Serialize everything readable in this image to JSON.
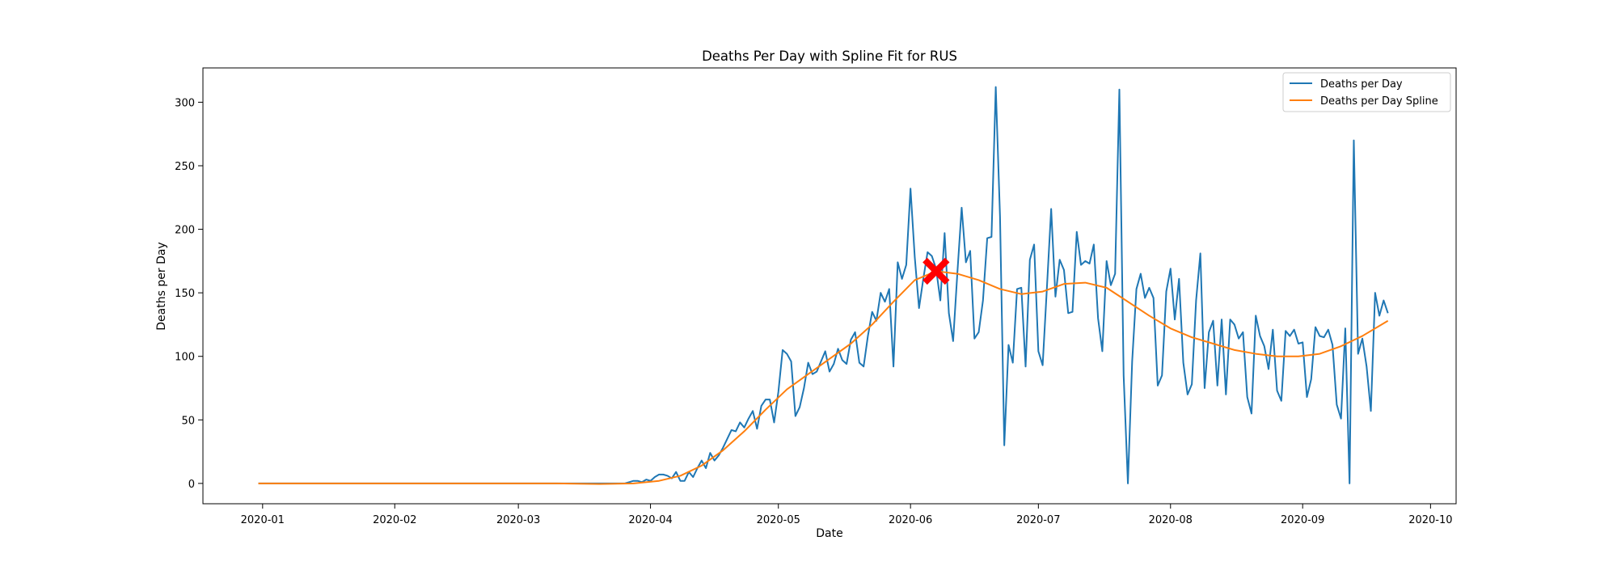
{
  "chart_data": {
    "type": "line",
    "title": "Deaths Per Day with Spline Fit for RUS",
    "xlabel": "Date",
    "ylabel": "Deaths per Day",
    "x_axis_type": "date",
    "xlim": [
      "2019-12-18",
      "2020-10-07"
    ],
    "ylim": [
      -16,
      327
    ],
    "x_ticks": [
      "2020-01-01",
      "2020-02-01",
      "2020-03-01",
      "2020-04-01",
      "2020-05-01",
      "2020-06-01",
      "2020-07-01",
      "2020-08-01",
      "2020-09-01",
      "2020-10-01"
    ],
    "x_tick_labels": [
      "2020-01",
      "2020-02",
      "2020-03",
      "2020-04",
      "2020-05",
      "2020-06",
      "2020-07",
      "2020-08",
      "2020-09",
      "2020-10"
    ],
    "y_ticks": [
      0,
      50,
      100,
      150,
      200,
      250,
      300
    ],
    "y_tick_labels": [
      "0",
      "50",
      "100",
      "150",
      "200",
      "250",
      "300"
    ],
    "grid": false,
    "legend_position": "top-right",
    "series": [
      {
        "name": "Deaths per Day",
        "color": "#1f77b4",
        "points": [
          [
            "2019-12-31",
            0
          ],
          [
            "2020-01-31",
            0
          ],
          [
            "2020-03-01",
            0
          ],
          [
            "2020-03-26",
            0
          ],
          [
            "2020-03-27",
            1
          ],
          [
            "2020-03-28",
            2
          ],
          [
            "2020-03-29",
            2
          ],
          [
            "2020-03-30",
            1
          ],
          [
            "2020-03-31",
            3
          ],
          [
            "2020-04-01",
            2
          ],
          [
            "2020-04-02",
            5
          ],
          [
            "2020-04-03",
            7
          ],
          [
            "2020-04-04",
            7
          ],
          [
            "2020-04-05",
            6
          ],
          [
            "2020-04-06",
            4
          ],
          [
            "2020-04-07",
            9
          ],
          [
            "2020-04-08",
            2
          ],
          [
            "2020-04-09",
            2
          ],
          [
            "2020-04-10",
            9
          ],
          [
            "2020-04-11",
            5
          ],
          [
            "2020-04-12",
            12
          ],
          [
            "2020-04-13",
            18
          ],
          [
            "2020-04-14",
            12
          ],
          [
            "2020-04-15",
            24
          ],
          [
            "2020-04-16",
            18
          ],
          [
            "2020-04-17",
            22
          ],
          [
            "2020-04-18",
            28
          ],
          [
            "2020-04-19",
            35
          ],
          [
            "2020-04-20",
            42
          ],
          [
            "2020-04-21",
            41
          ],
          [
            "2020-04-22",
            48
          ],
          [
            "2020-04-23",
            44
          ],
          [
            "2020-04-24",
            51
          ],
          [
            "2020-04-25",
            57
          ],
          [
            "2020-04-26",
            43
          ],
          [
            "2020-04-27",
            61
          ],
          [
            "2020-04-28",
            66
          ],
          [
            "2020-04-29",
            66
          ],
          [
            "2020-04-30",
            48
          ],
          [
            "2020-05-01",
            72
          ],
          [
            "2020-05-02",
            105
          ],
          [
            "2020-05-03",
            102
          ],
          [
            "2020-05-04",
            96
          ],
          [
            "2020-05-05",
            53
          ],
          [
            "2020-05-06",
            60
          ],
          [
            "2020-05-07",
            75
          ],
          [
            "2020-05-08",
            95
          ],
          [
            "2020-05-09",
            86
          ],
          [
            "2020-05-10",
            88
          ],
          [
            "2020-05-11",
            96
          ],
          [
            "2020-05-12",
            104
          ],
          [
            "2020-05-13",
            88
          ],
          [
            "2020-05-14",
            94
          ],
          [
            "2020-05-15",
            106
          ],
          [
            "2020-05-16",
            97
          ],
          [
            "2020-05-17",
            94
          ],
          [
            "2020-05-18",
            113
          ],
          [
            "2020-05-19",
            119
          ],
          [
            "2020-05-20",
            95
          ],
          [
            "2020-05-21",
            92
          ],
          [
            "2020-05-22",
            116
          ],
          [
            "2020-05-23",
            135
          ],
          [
            "2020-05-24",
            128
          ],
          [
            "2020-05-25",
            150
          ],
          [
            "2020-05-26",
            143
          ],
          [
            "2020-05-27",
            153
          ],
          [
            "2020-05-28",
            92
          ],
          [
            "2020-05-29",
            174
          ],
          [
            "2020-05-30",
            161
          ],
          [
            "2020-05-31",
            172
          ],
          [
            "2020-06-01",
            232
          ],
          [
            "2020-06-02",
            178
          ],
          [
            "2020-06-03",
            138
          ],
          [
            "2020-06-04",
            161
          ],
          [
            "2020-06-05",
            182
          ],
          [
            "2020-06-06",
            179
          ],
          [
            "2020-06-07",
            169
          ],
          [
            "2020-06-08",
            144
          ],
          [
            "2020-06-09",
            197
          ],
          [
            "2020-06-10",
            134
          ],
          [
            "2020-06-11",
            112
          ],
          [
            "2020-06-12",
            166
          ],
          [
            "2020-06-13",
            217
          ],
          [
            "2020-06-14",
            174
          ],
          [
            "2020-06-15",
            183
          ],
          [
            "2020-06-16",
            114
          ],
          [
            "2020-06-17",
            119
          ],
          [
            "2020-06-18",
            144
          ],
          [
            "2020-06-19",
            193
          ],
          [
            "2020-06-20",
            194
          ],
          [
            "2020-06-21",
            312
          ],
          [
            "2020-06-22",
            210
          ],
          [
            "2020-06-23",
            30
          ],
          [
            "2020-06-24",
            109
          ],
          [
            "2020-06-25",
            95
          ],
          [
            "2020-06-26",
            153
          ],
          [
            "2020-06-27",
            154
          ],
          [
            "2020-06-28",
            92
          ],
          [
            "2020-06-29",
            176
          ],
          [
            "2020-06-30",
            188
          ],
          [
            "2020-07-01",
            104
          ],
          [
            "2020-07-02",
            93
          ],
          [
            "2020-07-03",
            154
          ],
          [
            "2020-07-04",
            216
          ],
          [
            "2020-07-05",
            147
          ],
          [
            "2020-07-06",
            176
          ],
          [
            "2020-07-07",
            168
          ],
          [
            "2020-07-08",
            134
          ],
          [
            "2020-07-09",
            135
          ],
          [
            "2020-07-10",
            198
          ],
          [
            "2020-07-11",
            172
          ],
          [
            "2020-07-12",
            175
          ],
          [
            "2020-07-13",
            173
          ],
          [
            "2020-07-14",
            188
          ],
          [
            "2020-07-15",
            130
          ],
          [
            "2020-07-16",
            104
          ],
          [
            "2020-07-17",
            175
          ],
          [
            "2020-07-18",
            156
          ],
          [
            "2020-07-19",
            165
          ],
          [
            "2020-07-20",
            310
          ],
          [
            "2020-07-21",
            85
          ],
          [
            "2020-07-22",
            0
          ],
          [
            "2020-07-23",
            96
          ],
          [
            "2020-07-24",
            153
          ],
          [
            "2020-07-25",
            165
          ],
          [
            "2020-07-26",
            146
          ],
          [
            "2020-07-27",
            154
          ],
          [
            "2020-07-28",
            146
          ],
          [
            "2020-07-29",
            77
          ],
          [
            "2020-07-30",
            85
          ],
          [
            "2020-07-31",
            151
          ],
          [
            "2020-08-01",
            169
          ],
          [
            "2020-08-02",
            129
          ],
          [
            "2020-08-03",
            161
          ],
          [
            "2020-08-04",
            95
          ],
          [
            "2020-08-05",
            70
          ],
          [
            "2020-08-06",
            78
          ],
          [
            "2020-08-07",
            144
          ],
          [
            "2020-08-08",
            181
          ],
          [
            "2020-08-09",
            75
          ],
          [
            "2020-08-10",
            119
          ],
          [
            "2020-08-11",
            128
          ],
          [
            "2020-08-12",
            77
          ],
          [
            "2020-08-13",
            129
          ],
          [
            "2020-08-14",
            70
          ],
          [
            "2020-08-15",
            129
          ],
          [
            "2020-08-16",
            125
          ],
          [
            "2020-08-17",
            114
          ],
          [
            "2020-08-18",
            119
          ],
          [
            "2020-08-19",
            68
          ],
          [
            "2020-08-20",
            55
          ],
          [
            "2020-08-21",
            132
          ],
          [
            "2020-08-22",
            116
          ],
          [
            "2020-08-23",
            108
          ],
          [
            "2020-08-24",
            90
          ],
          [
            "2020-08-25",
            121
          ],
          [
            "2020-08-26",
            73
          ],
          [
            "2020-08-27",
            65
          ],
          [
            "2020-08-28",
            120
          ],
          [
            "2020-08-29",
            116
          ],
          [
            "2020-08-30",
            121
          ],
          [
            "2020-08-31",
            110
          ],
          [
            "2020-09-01",
            111
          ],
          [
            "2020-09-02",
            68
          ],
          [
            "2020-09-03",
            82
          ],
          [
            "2020-09-04",
            123
          ],
          [
            "2020-09-05",
            116
          ],
          [
            "2020-09-06",
            115
          ],
          [
            "2020-09-07",
            121
          ],
          [
            "2020-09-08",
            109
          ],
          [
            "2020-09-09",
            62
          ],
          [
            "2020-09-10",
            51
          ],
          [
            "2020-09-11",
            122
          ],
          [
            "2020-09-12",
            0
          ],
          [
            "2020-09-13",
            270
          ],
          [
            "2020-09-14",
            102
          ],
          [
            "2020-09-15",
            114
          ],
          [
            "2020-09-16",
            92
          ],
          [
            "2020-09-17",
            57
          ],
          [
            "2020-09-18",
            150
          ],
          [
            "2020-09-19",
            132
          ],
          [
            "2020-09-20",
            144
          ],
          [
            "2020-09-21",
            134
          ]
        ]
      },
      {
        "name": "Deaths per Day Spline",
        "color": "#ff7f0e",
        "points": [
          [
            "2019-12-31",
            0
          ],
          [
            "2020-02-15",
            0
          ],
          [
            "2020-03-10",
            0
          ],
          [
            "2020-03-20",
            -0.5
          ],
          [
            "2020-03-28",
            0
          ],
          [
            "2020-04-03",
            2
          ],
          [
            "2020-04-08",
            6
          ],
          [
            "2020-04-13",
            14
          ],
          [
            "2020-04-18",
            26
          ],
          [
            "2020-04-23",
            41
          ],
          [
            "2020-04-28",
            58
          ],
          [
            "2020-05-03",
            74
          ],
          [
            "2020-05-08",
            86
          ],
          [
            "2020-05-13",
            98
          ],
          [
            "2020-05-18",
            110
          ],
          [
            "2020-05-23",
            125
          ],
          [
            "2020-05-28",
            143
          ],
          [
            "2020-06-02",
            160
          ],
          [
            "2020-06-07",
            167
          ],
          [
            "2020-06-12",
            165
          ],
          [
            "2020-06-17",
            160
          ],
          [
            "2020-06-22",
            153
          ],
          [
            "2020-06-27",
            149
          ],
          [
            "2020-07-02",
            151
          ],
          [
            "2020-07-07",
            157
          ],
          [
            "2020-07-12",
            158
          ],
          [
            "2020-07-17",
            154
          ],
          [
            "2020-07-22",
            143
          ],
          [
            "2020-07-27",
            132
          ],
          [
            "2020-08-01",
            122
          ],
          [
            "2020-08-06",
            115
          ],
          [
            "2020-08-11",
            110
          ],
          [
            "2020-08-16",
            105
          ],
          [
            "2020-08-21",
            102
          ],
          [
            "2020-08-26",
            100
          ],
          [
            "2020-08-31",
            100
          ],
          [
            "2020-09-05",
            102
          ],
          [
            "2020-09-10",
            108
          ],
          [
            "2020-09-15",
            116
          ],
          [
            "2020-09-21",
            128
          ]
        ]
      }
    ],
    "marker": {
      "date": "2020-06-07",
      "value": 167,
      "symbol": "x",
      "color": "#ff0000"
    }
  }
}
